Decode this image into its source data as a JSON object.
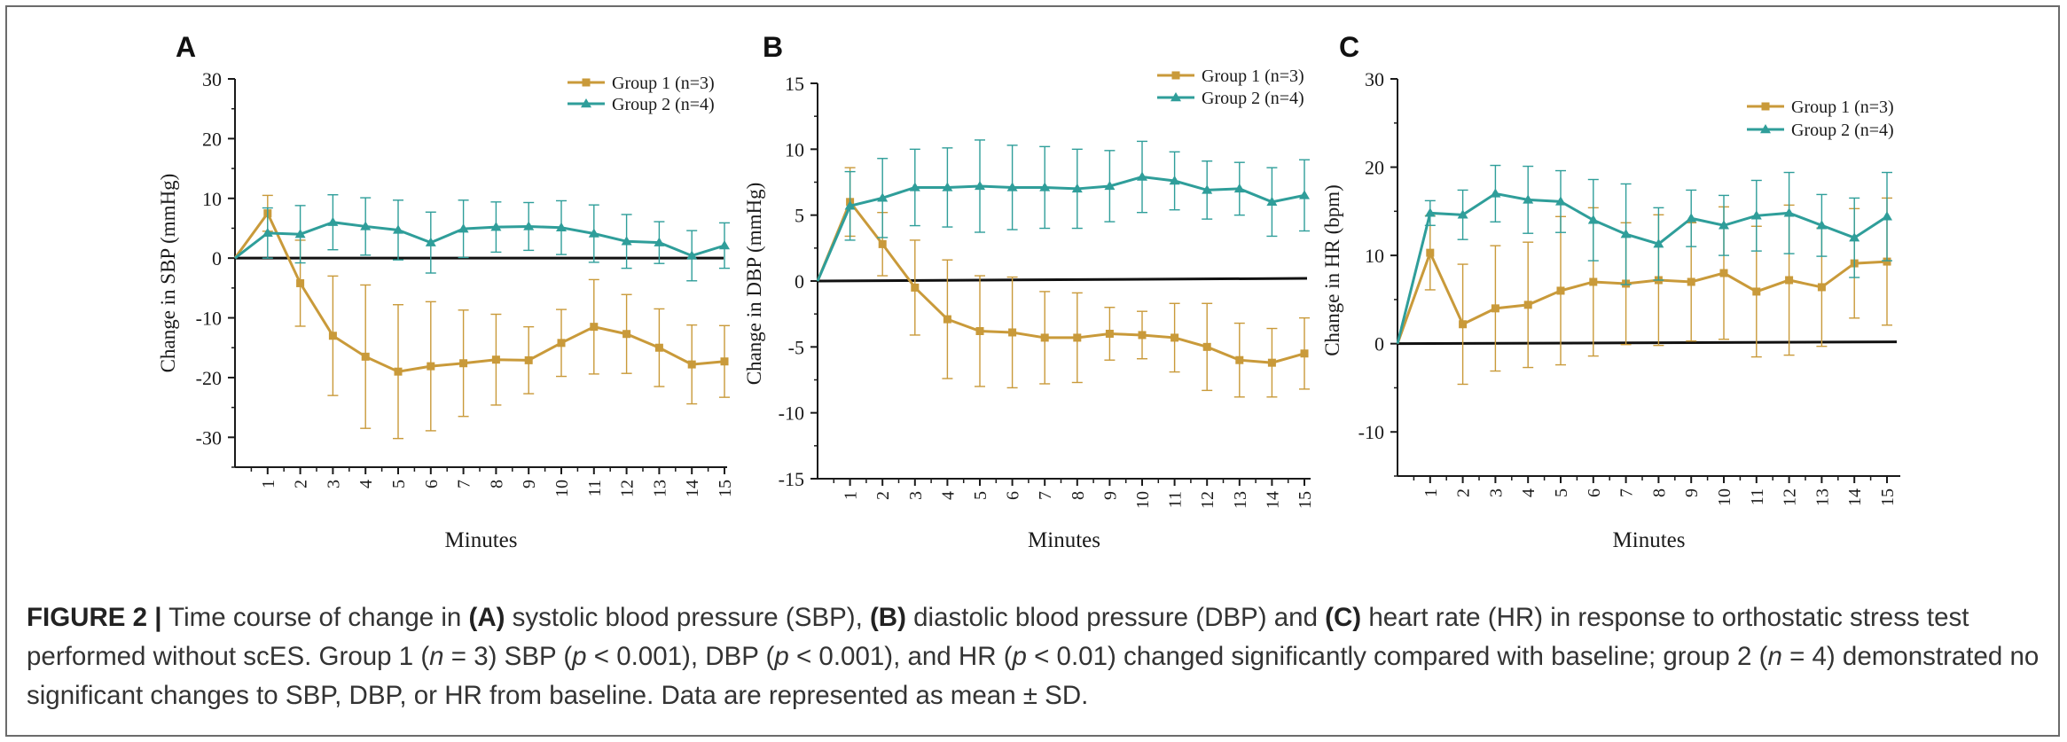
{
  "colors": {
    "group1": "#c99a3a",
    "group2": "#2f9e9a",
    "baseline": "#111111",
    "axis": "#1a1a1a",
    "caption_text": "#333333"
  },
  "chart_data": [
    {
      "type": "line",
      "panel": "A",
      "xlabel": "Minutes",
      "ylabel": "Change in SBP (mmHg)",
      "ylim": [
        -35,
        30
      ],
      "yticks": [
        30,
        20,
        10,
        0,
        -10,
        -20,
        -30
      ],
      "xlim": [
        0,
        15
      ],
      "xticks": [
        1,
        2,
        3,
        4,
        5,
        6,
        7,
        8,
        9,
        10,
        11,
        12,
        13,
        14,
        15
      ],
      "baseline": 0,
      "legend_position": "top-right",
      "series": [
        {
          "name": "Group 1 (n=3)",
          "marker": "square",
          "x": [
            0,
            1,
            2,
            3,
            4,
            5,
            6,
            7,
            8,
            9,
            10,
            11,
            12,
            13,
            14,
            15
          ],
          "values": [
            0,
            7.5,
            -4.2,
            -13,
            -16.5,
            -19,
            -18.1,
            -17.6,
            -17,
            -17.1,
            -14.2,
            -11.5,
            -12.7,
            -15,
            -17.8,
            -17.3
          ],
          "err": [
            0,
            3,
            7.2,
            10,
            12,
            11.2,
            10.8,
            8.9,
            7.6,
            5.6,
            5.6,
            7.9,
            6.6,
            6.5,
            6.6,
            6
          ]
        },
        {
          "name": "Group 2 (n=4)",
          "marker": "triangle",
          "x": [
            0,
            1,
            2,
            3,
            4,
            5,
            6,
            7,
            8,
            9,
            10,
            11,
            12,
            13,
            14,
            15
          ],
          "values": [
            0,
            4.2,
            4,
            6,
            5.3,
            4.7,
            2.6,
            4.9,
            5.2,
            5.3,
            5.1,
            4.1,
            2.8,
            2.6,
            0.4,
            2.1
          ],
          "err": [
            0,
            4.2,
            4.8,
            4.6,
            4.8,
            5,
            5.1,
            4.8,
            4.2,
            4,
            4.5,
            4.8,
            4.5,
            3.5,
            4.2,
            3.8
          ]
        }
      ]
    },
    {
      "type": "line",
      "panel": "B",
      "xlabel": "Minutes",
      "ylabel": "Change in DBP (mmHg)",
      "ylim": [
        -15,
        15
      ],
      "yticks": [
        15,
        10,
        5,
        0,
        -5,
        -10,
        -15
      ],
      "xlim": [
        0,
        15
      ],
      "xticks": [
        1,
        2,
        3,
        4,
        5,
        6,
        7,
        8,
        9,
        10,
        11,
        12,
        13,
        14,
        15
      ],
      "baseline": 0,
      "baseline_end": 0.2,
      "legend_position": "top-right",
      "series": [
        {
          "name": "Group 1 (n=3)",
          "marker": "square",
          "x": [
            0,
            1,
            2,
            3,
            4,
            5,
            6,
            7,
            8,
            9,
            10,
            11,
            12,
            13,
            14,
            15
          ],
          "values": [
            0,
            6,
            2.8,
            -0.5,
            -2.9,
            -3.8,
            -3.9,
            -4.3,
            -4.3,
            -4,
            -4.1,
            -4.3,
            -5,
            -6,
            -6.2,
            -5.5
          ],
          "err": [
            0,
            2.6,
            2.4,
            3.6,
            4.5,
            4.2,
            4.2,
            3.5,
            3.4,
            2,
            1.8,
            2.6,
            3.3,
            2.8,
            2.6,
            2.7
          ]
        },
        {
          "name": "Group 2 (n=4)",
          "marker": "triangle",
          "x": [
            0,
            1,
            2,
            3,
            4,
            5,
            6,
            7,
            8,
            9,
            10,
            11,
            12,
            13,
            14,
            15
          ],
          "values": [
            0,
            5.7,
            6.3,
            7.1,
            7.1,
            7.2,
            7.1,
            7.1,
            7,
            7.2,
            7.9,
            7.6,
            6.9,
            7,
            6,
            6.5
          ],
          "err": [
            0,
            2.6,
            3,
            2.9,
            3,
            3.5,
            3.2,
            3.1,
            3,
            2.7,
            2.7,
            2.2,
            2.2,
            2,
            2.6,
            2.7
          ]
        }
      ]
    },
    {
      "type": "line",
      "panel": "C",
      "xlabel": "Minutes",
      "ylabel": "Change in HR (bpm)",
      "ylim": [
        -15,
        30
      ],
      "yticks": [
        30,
        20,
        10,
        0,
        -10
      ],
      "xlim": [
        0,
        15
      ],
      "xticks": [
        1,
        2,
        3,
        4,
        5,
        6,
        7,
        8,
        9,
        10,
        11,
        12,
        13,
        14,
        15
      ],
      "baseline": 0,
      "baseline_end": 0.2,
      "legend_position": "top-right",
      "series": [
        {
          "name": "Group 1 (n=3)",
          "marker": "square",
          "x": [
            0,
            1,
            2,
            3,
            4,
            5,
            6,
            7,
            8,
            9,
            10,
            11,
            12,
            13,
            14,
            15
          ],
          "values": [
            0,
            10.3,
            2.2,
            4,
            4.4,
            6,
            7,
            6.8,
            7.2,
            7,
            8,
            5.9,
            7.2,
            6.4,
            9.1,
            9.3
          ],
          "err": [
            0,
            4.2,
            6.8,
            7.1,
            7.1,
            8.4,
            8.4,
            6.9,
            7.4,
            6.7,
            7.5,
            7.4,
            8.5,
            6.7,
            6.2,
            7.2
          ]
        },
        {
          "name": "Group 2 (n=4)",
          "marker": "triangle",
          "x": [
            0,
            1,
            2,
            3,
            4,
            5,
            6,
            7,
            8,
            9,
            10,
            11,
            12,
            13,
            14,
            15
          ],
          "values": [
            0,
            14.8,
            14.6,
            17,
            16.3,
            16.1,
            14,
            12.4,
            11.3,
            14.2,
            13.4,
            14.5,
            14.8,
            13.4,
            12,
            14.4
          ],
          "err": [
            0,
            1.4,
            2.8,
            3.2,
            3.8,
            3.5,
            4.6,
            5.7,
            4.1,
            3.2,
            3.4,
            4,
            4.6,
            3.5,
            4.5,
            5
          ]
        }
      ]
    }
  ],
  "caption": {
    "label": "FIGURE 2 |",
    "t1": " Time course of change in ",
    "a_bold": "(A)",
    "t2": " systolic blood pressure (SBP), ",
    "b_bold": "(B)",
    "t3": " diastolic blood pressure (DBP) and ",
    "c_bold": "(C)",
    "t4": " heart rate (HR) in response to orthostatic stress test performed without scES. Group 1 (",
    "n_var": "n",
    "t5": " = 3) SBP (",
    "p_var": "p",
    "t6": " < 0.001), DBP (",
    "t7": " < 0.001), and HR (",
    "t8": " < 0.01) changed significantly compared with baseline; group 2 (",
    "t9": " = 4) demonstrated no significant changes to SBP, DBP, or HR from baseline. Data are represented as mean ± SD."
  }
}
